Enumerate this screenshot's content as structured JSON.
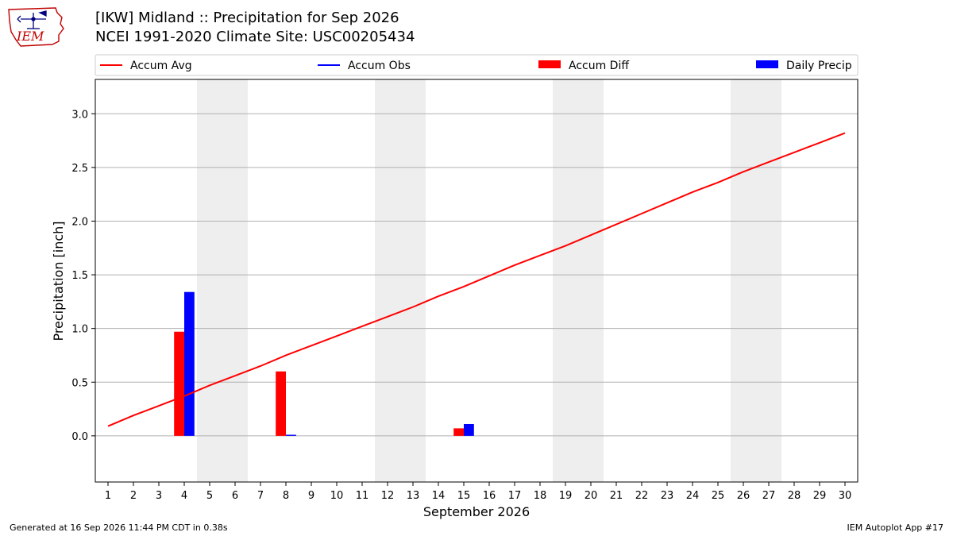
{
  "header": {
    "title": "[IKW] Midland :: Precipitation for Sep 2026",
    "subtitle": "NCEI 1991-2020 Climate Site: USC00205434",
    "logo_text": "IEM"
  },
  "footer": {
    "generated": "Generated at 16 Sep 2026 11:44 PM CDT in 0.38s",
    "app": "IEM Autoplot App #17"
  },
  "colors": {
    "accum_avg": "#ff0000",
    "accum_obs": "#0000ff",
    "accum_diff": "#ff0000",
    "daily_precip": "#0000ff",
    "weekend_band": "#eeeeee",
    "grid": "#b0b0b0"
  },
  "chart_data": {
    "type": "bar",
    "xlabel": "September 2026",
    "ylabel": "Precipitation [inch]",
    "xlim": [
      0.5,
      30.5
    ],
    "ylim": [
      -0.43,
      3.32
    ],
    "x_ticks": [
      1,
      2,
      3,
      4,
      5,
      6,
      7,
      8,
      9,
      10,
      11,
      12,
      13,
      14,
      15,
      16,
      17,
      18,
      19,
      20,
      21,
      22,
      23,
      24,
      25,
      26,
      27,
      28,
      29,
      30
    ],
    "y_ticks": [
      "0.0",
      "0.5",
      "1.0",
      "1.5",
      "2.0",
      "2.5",
      "3.0"
    ],
    "y_tick_values": [
      0.0,
      0.5,
      1.0,
      1.5,
      2.0,
      2.5,
      3.0
    ],
    "grid": true,
    "legend_position": "top",
    "weekend_bands": [
      [
        5,
        6
      ],
      [
        12,
        13
      ],
      [
        19,
        20
      ],
      [
        26,
        27
      ]
    ],
    "legend": [
      {
        "label": "Accum Avg",
        "kind": "line",
        "color": "#ff0000"
      },
      {
        "label": "Accum Obs",
        "kind": "line",
        "color": "#0000ff"
      },
      {
        "label": "Accum Diff",
        "kind": "bar",
        "color": "#ff0000"
      },
      {
        "label": "Daily Precip",
        "kind": "bar",
        "color": "#0000ff"
      }
    ],
    "accum_avg": {
      "name": "Accum Avg",
      "x": [
        1,
        2,
        3,
        4,
        5,
        6,
        7,
        8,
        9,
        10,
        11,
        12,
        13,
        14,
        15,
        16,
        17,
        18,
        19,
        20,
        21,
        22,
        23,
        24,
        25,
        26,
        27,
        28,
        29,
        30
      ],
      "values": [
        0.09,
        0.19,
        0.28,
        0.37,
        0.47,
        0.56,
        0.65,
        0.75,
        0.84,
        0.93,
        1.02,
        1.11,
        1.2,
        1.3,
        1.39,
        1.49,
        1.59,
        1.68,
        1.77,
        1.87,
        1.97,
        2.07,
        2.17,
        2.27,
        2.36,
        2.46,
        2.55,
        2.64,
        2.73,
        2.82
      ]
    },
    "accum_diff": {
      "name": "Accum Diff",
      "x": [
        4,
        8,
        15
      ],
      "values": [
        0.97,
        0.6,
        0.07
      ]
    },
    "daily_precip": {
      "name": "Daily Precip",
      "x": [
        4,
        8,
        15
      ],
      "values": [
        1.34,
        0.01,
        0.11
      ]
    }
  }
}
